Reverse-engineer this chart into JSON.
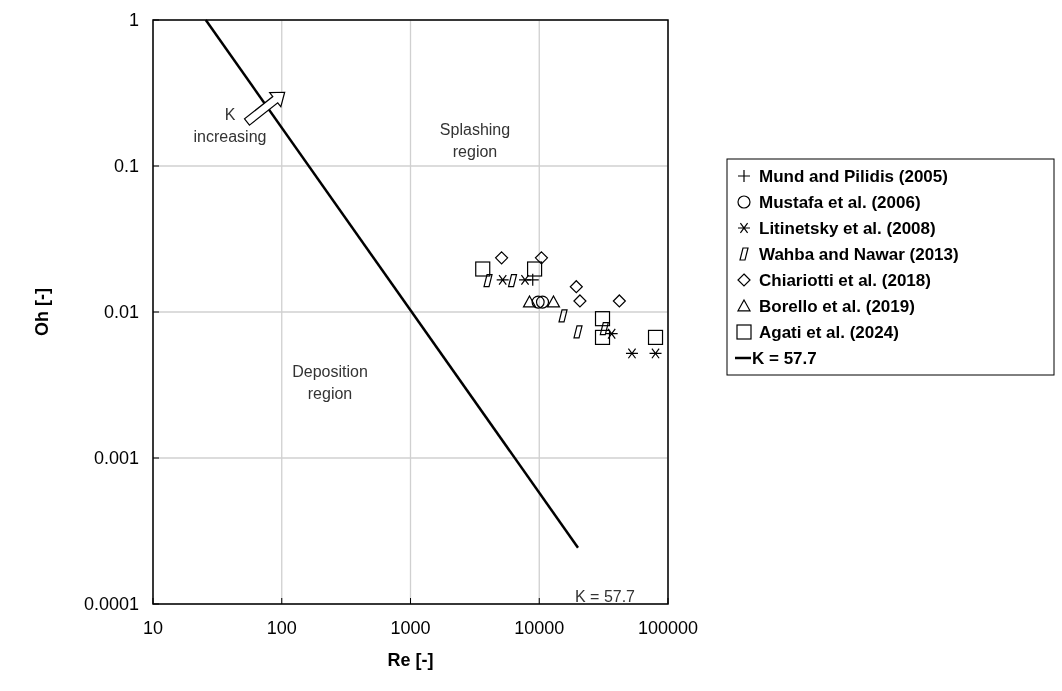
{
  "chart_data": {
    "type": "scatter",
    "xlabel": "Re [-]",
    "ylabel": "Oh [-]",
    "log": "xy",
    "grid": true,
    "legend": "right",
    "xlim": [
      10,
      100000
    ],
    "xticks": [
      10,
      100,
      1000,
      10000,
      100000
    ],
    "ylim": [
      0.0001,
      1
    ],
    "yticks": [
      0.0001,
      0.001,
      0.01,
      0.1,
      1
    ],
    "series": [
      {
        "name": "Mund and Pilidis (2005)",
        "color": "#000000",
        "marker": "cross",
        "x": [
          8900
        ],
        "values": [
          0.0166
        ]
      },
      {
        "name": "Mustafa et al. (2006)",
        "color": "#000000",
        "marker": "circle",
        "x": [
          9800,
          10600
        ],
        "values": [
          0.0117,
          0.0117
        ]
      },
      {
        "name": "Litinetsky et al. (2008)",
        "color": "#000000",
        "x": [
          5200,
          7750,
          36500,
          52500,
          80000
        ],
        "values": [
          0.0166,
          0.0166,
          0.0071,
          0.0052,
          0.0052
        ]
      },
      {
        "name": "Wahba and Nawar (2013)",
        "color": "#000000",
        "x": [
          4000,
          6200,
          15300,
          20000,
          32000
        ],
        "values": [
          0.0164,
          0.0164,
          0.0094,
          0.0073,
          0.0077
        ]
      },
      {
        "name": "Chiariotti et al. (2018)",
        "color": "#000000",
        "marker": "diamond",
        "x": [
          5100,
          10400,
          19400,
          20700,
          41900
        ],
        "values": [
          0.0235,
          0.0235,
          0.0149,
          0.0119,
          0.0119
        ]
      },
      {
        "name": "Borello et al. (2019)",
        "color": "#000000",
        "marker": "triangle",
        "x": [
          8400,
          12900
        ],
        "values": [
          0.0117,
          0.0117
        ]
      },
      {
        "name": "Agati et al. (2024)",
        "color": "#000000",
        "marker": "square",
        "x": [
          3640,
          9200,
          31000,
          31000,
          80000
        ],
        "values": [
          0.0197,
          0.0197,
          0.009,
          0.0067,
          0.0067
        ]
      },
      {
        "name": "K = 57.7",
        "type": "line",
        "color": "#000000",
        "marker": "none",
        "x": [
          25.7,
          20000
        ],
        "values": [
          1,
          0.000243
        ]
      }
    ],
    "annotations": [
      "K\nincreasing",
      "Splashing\nregion",
      "Deposition\nregion",
      "K = 57.7"
    ]
  }
}
